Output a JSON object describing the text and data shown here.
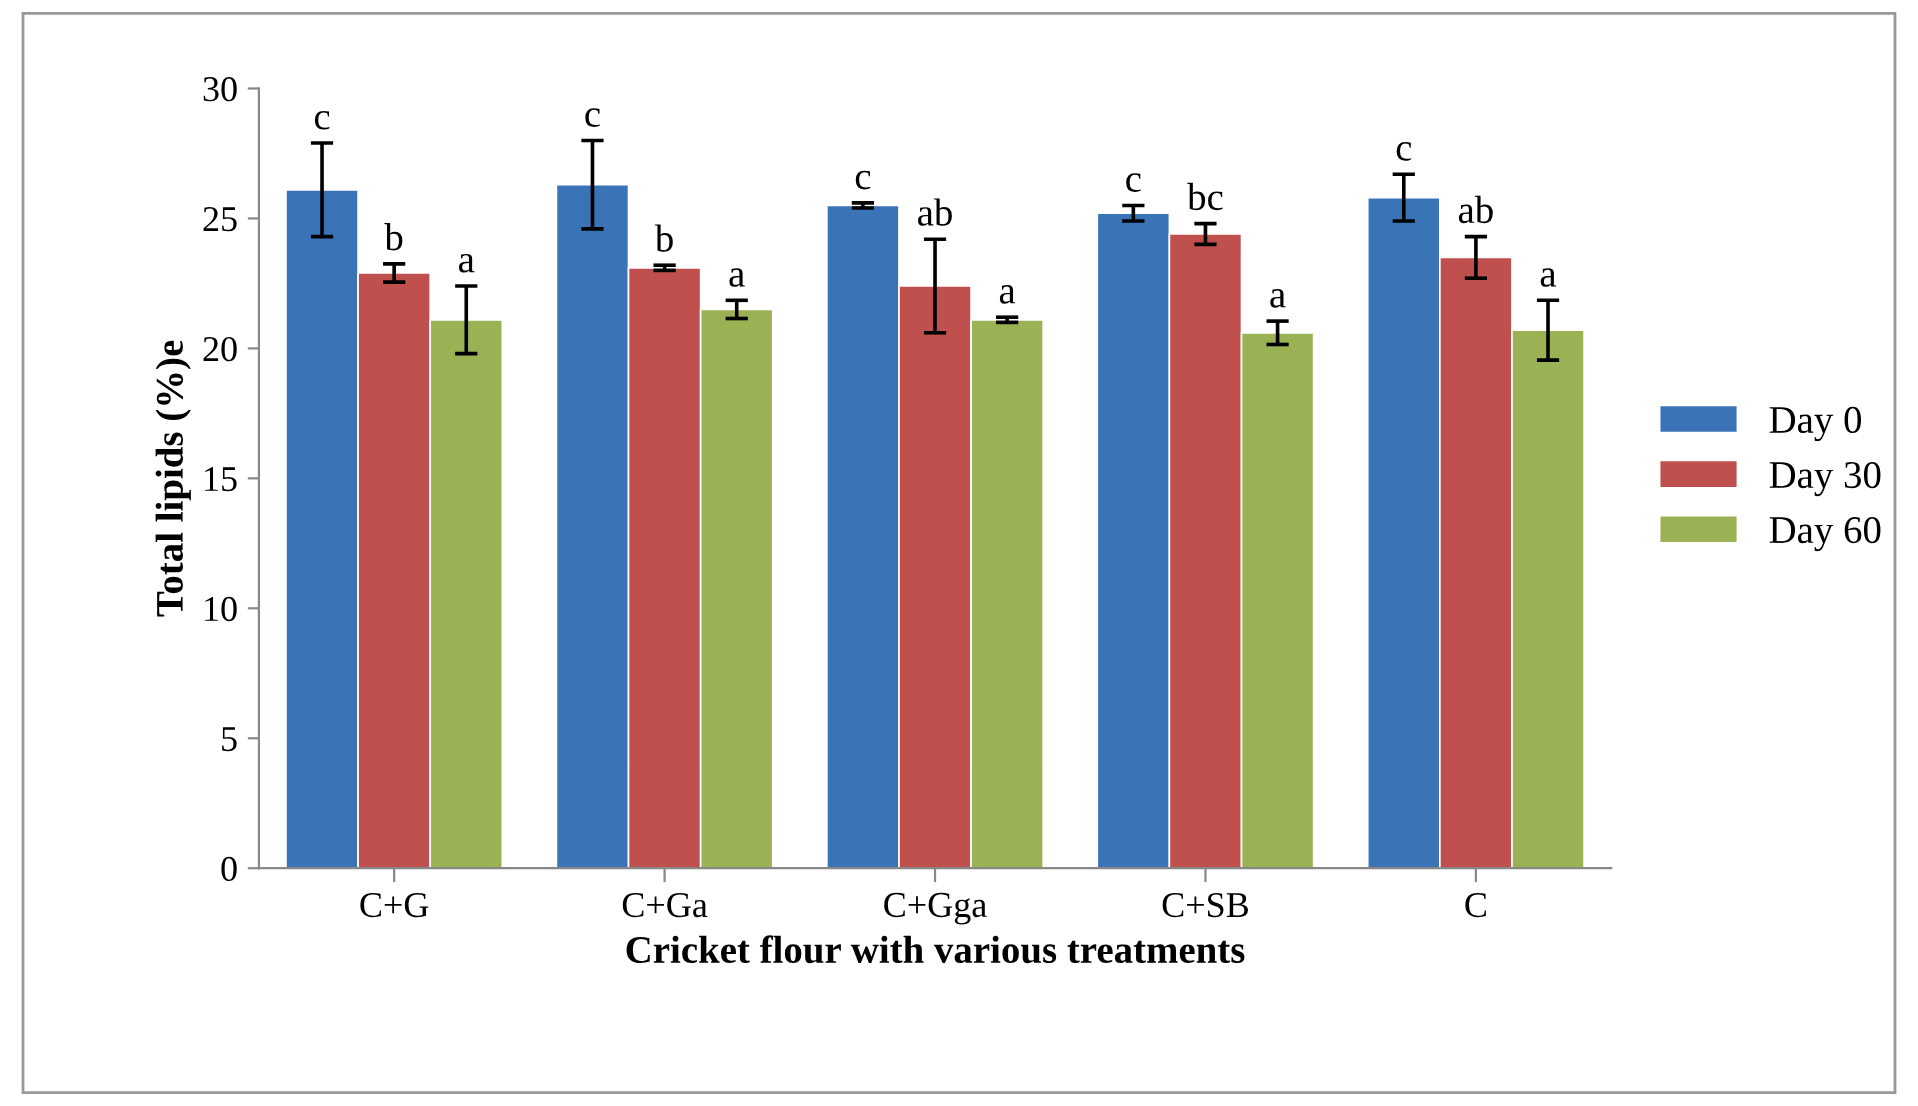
{
  "chart_data": {
    "type": "bar",
    "xlabel": "Cricket flour with various treatments",
    "ylabel": "Total lipids (%)e",
    "categories": [
      "C+G",
      "C+Ga",
      "C+Gga",
      "C+SB",
      "C"
    ],
    "series": [
      {
        "name": "Day 0",
        "color": "#3a73b6",
        "values": [
          26.1,
          26.3,
          25.5,
          25.2,
          25.8
        ],
        "errors": [
          1.8,
          1.7,
          0.1,
          0.3,
          0.9
        ],
        "value_labels": [
          "c",
          "c",
          "c",
          "c",
          "c"
        ]
      },
      {
        "name": "Day 30",
        "color": "#c0504d",
        "values": [
          22.9,
          23.1,
          22.4,
          24.4,
          23.5
        ],
        "errors": [
          0.35,
          0.1,
          1.8,
          0.4,
          0.8
        ],
        "value_labels": [
          "b",
          "b",
          "ab",
          "bc",
          "ab"
        ]
      },
      {
        "name": "Day 60",
        "color": "#9bb254",
        "values": [
          21.1,
          21.5,
          21.1,
          20.6,
          20.7
        ],
        "errors": [
          1.3,
          0.35,
          0.1,
          0.45,
          1.15
        ],
        "value_labels": [
          "a",
          "a",
          "a",
          "a",
          "a"
        ]
      }
    ],
    "ylim": [
      0,
      30
    ],
    "yticks": [
      0,
      5,
      10,
      15,
      20,
      25,
      30
    ],
    "grid": false,
    "legend": "right"
  }
}
